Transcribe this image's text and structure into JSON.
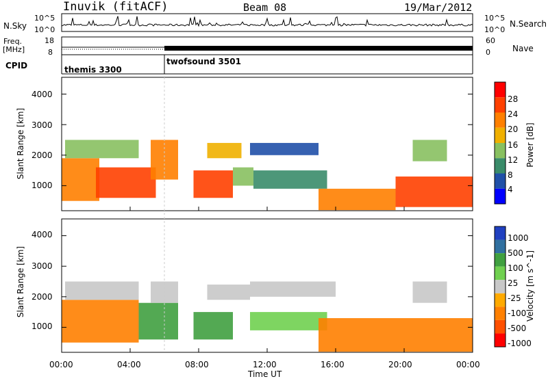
{
  "header": {
    "station": "Inuvik (fitACF)",
    "beam": "Beam 08",
    "date": "19/Mar/2012"
  },
  "sky_panel": {
    "left_label": "N.Sky",
    "left_ticks": [
      "10^5",
      "10^0"
    ],
    "right_ticks": [
      "10^5",
      "10^0"
    ],
    "right_label": "N.Search"
  },
  "freq_panel": {
    "left_label_1": "Freq.",
    "left_label_2": "[MHz]",
    "left_ticks": [
      "18",
      "8"
    ],
    "right_ticks": [
      "60",
      "0"
    ],
    "right_label": "Nave"
  },
  "cpid_panel": {
    "label": "CPID",
    "modes": [
      {
        "name": "themis 3300",
        "start_hour": 0
      },
      {
        "name": "twofsound 3501",
        "start_hour": 6
      }
    ]
  },
  "colors": {
    "power_scale": [
      "#0000ff",
      "#2050a8",
      "#3a8c6a",
      "#88c060",
      "#f0b000",
      "#ff8000",
      "#ff4000",
      "#ff0000"
    ],
    "velocity_scale": [
      "#ff0000",
      "#ff5000",
      "#ff8000",
      "#ffaa00",
      "#c8c8c8",
      "#70d050",
      "#40a040",
      "#3070a0",
      "#2040c0"
    ]
  },
  "chart_data": [
    {
      "type": "heatmap",
      "title": "",
      "xlabel": "",
      "ylabel": "Slant Range [km]",
      "xlim": [
        0,
        24
      ],
      "ylim": [
        180,
        4550
      ],
      "x_ticks": [
        "00:00",
        "04:00",
        "08:00",
        "12:00",
        "16:00",
        "20:00",
        "00:00"
      ],
      "y_ticks": [
        "1000",
        "2000",
        "3000",
        "4000"
      ],
      "colorbar": {
        "label": "Power [dB]",
        "tick_labels": [
          "4",
          "8",
          "12",
          "16",
          "20",
          "24",
          "28"
        ],
        "range": [
          0,
          32
        ]
      },
      "regions": [
        {
          "t0": 0.0,
          "t1": 2.2,
          "r0": 500,
          "r1": 1900,
          "value": 23
        },
        {
          "t0": 2.0,
          "t1": 5.5,
          "r0": 600,
          "r1": 1600,
          "value": 24
        },
        {
          "t0": 0.2,
          "t1": 4.5,
          "r0": 1900,
          "r1": 2500,
          "value": 15
        },
        {
          "t0": 5.2,
          "t1": 6.8,
          "r0": 1200,
          "r1": 2500,
          "value": 22
        },
        {
          "t0": 7.7,
          "t1": 10.0,
          "r0": 600,
          "r1": 1500,
          "value": 25
        },
        {
          "t0": 8.5,
          "t1": 10.5,
          "r0": 1900,
          "r1": 2400,
          "value": 18
        },
        {
          "t0": 10.0,
          "t1": 11.2,
          "r0": 1000,
          "r1": 1600,
          "value": 12
        },
        {
          "t0": 11.2,
          "t1": 15.5,
          "r0": 900,
          "r1": 1500,
          "value": 8
        },
        {
          "t0": 11.0,
          "t1": 15.0,
          "r0": 2000,
          "r1": 2400,
          "value": 6
        },
        {
          "t0": 15.0,
          "t1": 19.5,
          "r0": 200,
          "r1": 900,
          "value": 22
        },
        {
          "t0": 19.5,
          "t1": 24.0,
          "r0": 300,
          "r1": 1300,
          "value": 26
        },
        {
          "t0": 20.5,
          "t1": 22.5,
          "r0": 1800,
          "r1": 2500,
          "value": 14
        }
      ]
    },
    {
      "type": "heatmap",
      "title": "",
      "xlabel": "Time UT",
      "ylabel": "Slant Range [km]",
      "xlim": [
        0,
        24
      ],
      "ylim": [
        180,
        4550
      ],
      "x_ticks": [
        "00:00",
        "04:00",
        "08:00",
        "12:00",
        "16:00",
        "20:00",
        "00:00"
      ],
      "y_ticks": [
        "1000",
        "2000",
        "3000",
        "4000"
      ],
      "colorbar": {
        "label": "Velocity [m s^-1]",
        "tick_labels": [
          "1000",
          "500",
          "100",
          "25",
          "-25",
          "-100",
          "-500",
          "-1000"
        ]
      },
      "regions": [
        {
          "t0": 0.0,
          "t1": 4.5,
          "r0": 500,
          "r1": 1900,
          "value": -200
        },
        {
          "t0": 0.2,
          "t1": 4.5,
          "r0": 1900,
          "r1": 2500,
          "value": 0
        },
        {
          "t0": 4.5,
          "t1": 6.8,
          "r0": 600,
          "r1": 1800,
          "value": 150
        },
        {
          "t0": 5.2,
          "t1": 6.8,
          "r0": 1800,
          "r1": 2500,
          "value": 0
        },
        {
          "t0": 7.7,
          "t1": 10.0,
          "r0": 600,
          "r1": 1500,
          "value": 200
        },
        {
          "t0": 8.5,
          "t1": 11.0,
          "r0": 1900,
          "r1": 2400,
          "value": 0
        },
        {
          "t0": 11.0,
          "t1": 15.5,
          "r0": 900,
          "r1": 1500,
          "value": 60
        },
        {
          "t0": 11.0,
          "t1": 16.0,
          "r0": 2000,
          "r1": 2500,
          "value": 0
        },
        {
          "t0": 15.0,
          "t1": 24.0,
          "r0": 200,
          "r1": 1300,
          "value": -300
        },
        {
          "t0": 20.5,
          "t1": 22.5,
          "r0": 1800,
          "r1": 2500,
          "value": 10
        }
      ]
    }
  ]
}
